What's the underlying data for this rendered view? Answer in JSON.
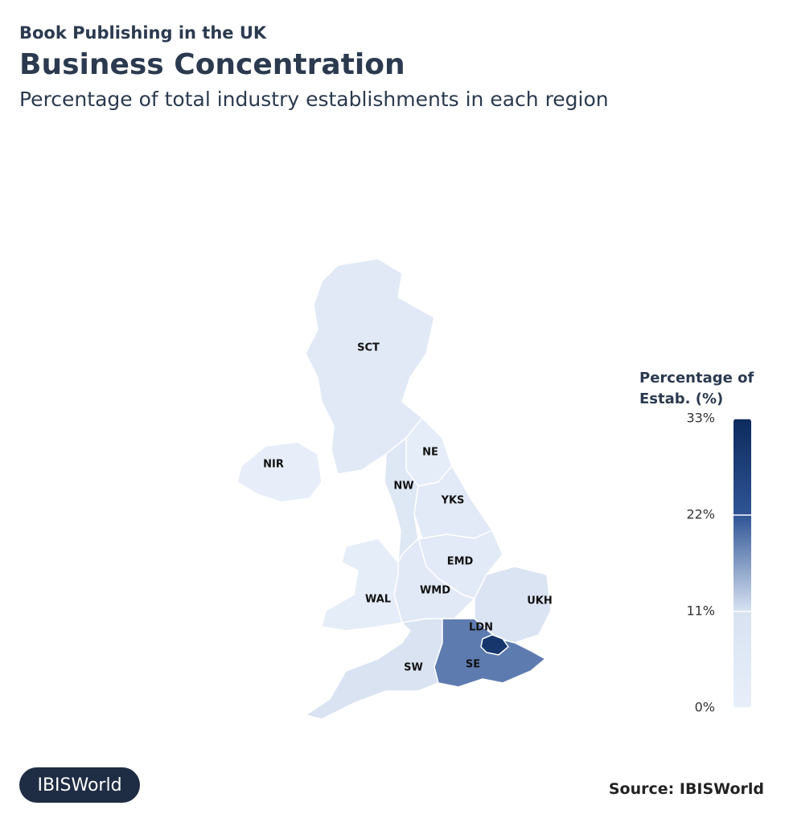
{
  "header": {
    "kicker": "Book Publishing in the UK",
    "title": "Business Concentration",
    "subtitle": "Percentage of total industry establishments in each region"
  },
  "map": {
    "regions": [
      {
        "code": "SCT",
        "value": 5
      },
      {
        "code": "NIR",
        "value": 1
      },
      {
        "code": "NE",
        "value": 2
      },
      {
        "code": "NW",
        "value": 7
      },
      {
        "code": "YKS",
        "value": 4
      },
      {
        "code": "EMD",
        "value": 4
      },
      {
        "code": "WMD",
        "value": 5
      },
      {
        "code": "WAL",
        "value": 2
      },
      {
        "code": "UKH",
        "value": 9
      },
      {
        "code": "SW",
        "value": 10
      },
      {
        "code": "SE",
        "value": 19
      },
      {
        "code": "LDN",
        "value": 30
      }
    ],
    "legend": {
      "title": [
        "Percentage of",
        "Estab. (%)"
      ],
      "range": [
        0,
        33
      ],
      "ticks": [
        {
          "value": 0,
          "label": "0%"
        },
        {
          "value": 11,
          "label": "11%"
        },
        {
          "value": 22,
          "label": "22%"
        },
        {
          "value": 33,
          "label": "33%"
        }
      ],
      "colors": [
        "#e8effa",
        "#d8e2f1",
        "#2f5596",
        "#0c2a5c"
      ]
    }
  },
  "footer": {
    "logo": "IBISWorld",
    "source": "Source: IBISWorld"
  }
}
